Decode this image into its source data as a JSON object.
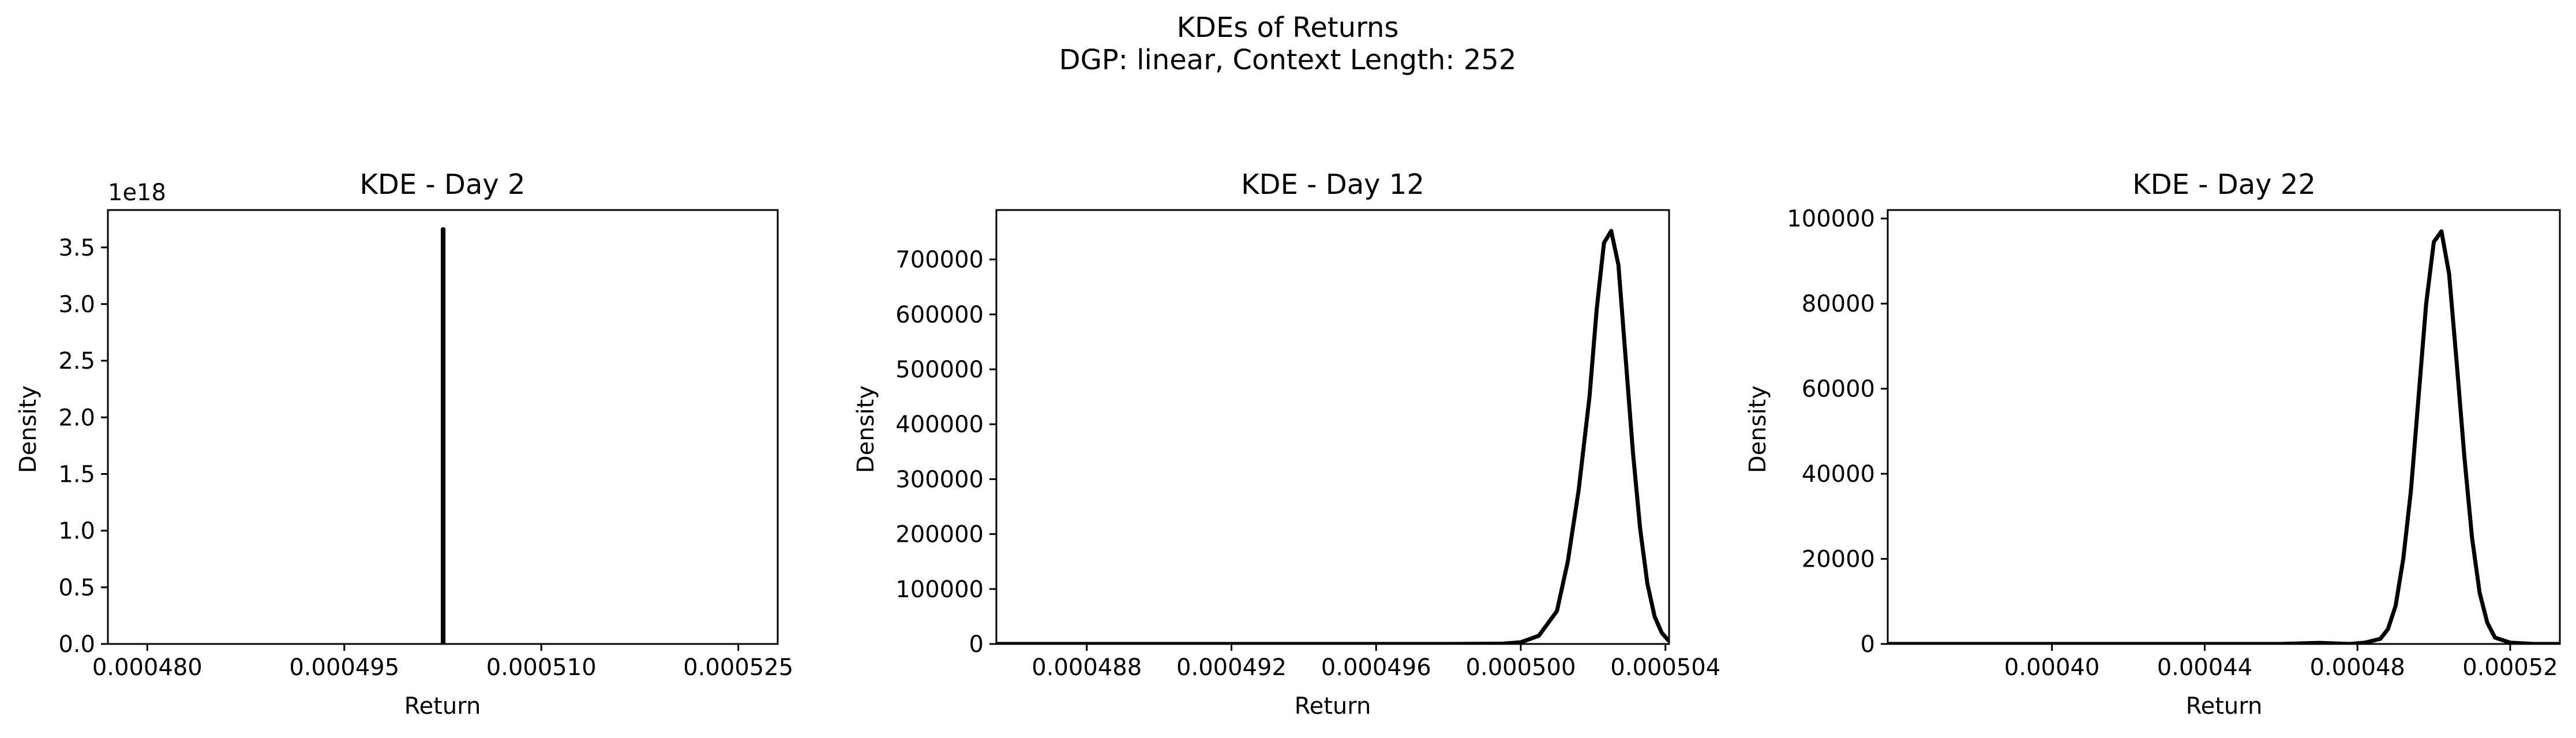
{
  "figure": {
    "title_line1": "KDEs of Returns",
    "title_line2": "DGP: linear, Context Length: 252"
  },
  "chart_data": [
    {
      "type": "line",
      "title": "KDE - Day 2",
      "xlabel": "Return",
      "ylabel": "Density",
      "y_offset_label": "1e18",
      "xlim": [
        0.000477,
        0.000528
      ],
      "ylim": [
        0,
        3.83
      ],
      "xticks": [
        0.00048,
        0.000495,
        0.00051,
        0.000525
      ],
      "xtick_labels": [
        "0.000480",
        "0.000495",
        "0.000510",
        "0.000525"
      ],
      "yticks": [
        0,
        0.5,
        1.0,
        1.5,
        2.0,
        2.5,
        3.0,
        3.5
      ],
      "ytick_labels": [
        "0.0",
        "0.5",
        "1.0",
        "1.5",
        "2.0",
        "2.5",
        "3.0",
        "3.5"
      ],
      "series": [
        {
          "x": [
            0.0005025,
            0.0005025,
            0.00050255,
            0.00050255
          ],
          "y": [
            0.0,
            3.66,
            3.66,
            0.0
          ]
        }
      ]
    },
    {
      "type": "line",
      "title": "KDE - Day 12",
      "xlabel": "Return",
      "ylabel": "Density",
      "xlim": [
        0.0004855,
        0.0005041
      ],
      "ylim": [
        0,
        790000
      ],
      "xticks": [
        0.000488,
        0.000492,
        0.000496,
        0.0005,
        0.000504
      ],
      "xtick_labels": [
        "0.000488",
        "0.000492",
        "0.000496",
        "0.000500",
        "0.000504"
      ],
      "yticks": [
        0,
        100000,
        200000,
        300000,
        400000,
        500000,
        600000,
        700000
      ],
      "ytick_labels": [
        "0",
        "100000",
        "200000",
        "300000",
        "400000",
        "500000",
        "600000",
        "700000"
      ],
      "series": [
        {
          "x": [
            0.0004855,
            0.000488,
            0.00049,
            0.000492,
            0.000494,
            0.000496,
            0.000498,
            0.0004995,
            0.0005,
            0.0005005,
            0.000501,
            0.0005013,
            0.0005016,
            0.0005019,
            0.0005021,
            0.0005023,
            0.0005025,
            0.0005027,
            0.0005029,
            0.0005031,
            0.0005033,
            0.0005035,
            0.0005037,
            0.0005039,
            0.0005041
          ],
          "y": [
            0,
            0,
            0,
            0,
            0,
            0,
            0,
            500,
            3000,
            15000,
            60000,
            150000,
            280000,
            450000,
            610000,
            730000,
            752000,
            690000,
            520000,
            350000,
            210000,
            110000,
            50000,
            20000,
            5000
          ]
        }
      ]
    },
    {
      "type": "line",
      "title": "KDE - Day 22",
      "xlabel": "Return",
      "ylabel": "Density",
      "xlim": [
        0.000357,
        0.000533
      ],
      "ylim": [
        0,
        102000
      ],
      "xticks": [
        0.0004,
        0.00044,
        0.00048,
        0.00052
      ],
      "xtick_labels": [
        "0.00040",
        "0.00044",
        "0.00048",
        "0.00052"
      ],
      "yticks": [
        0,
        20000,
        40000,
        60000,
        80000,
        100000
      ],
      "ytick_labels": [
        "0",
        "20000",
        "40000",
        "60000",
        "80000",
        "100000"
      ],
      "series": [
        {
          "x": [
            0.000357,
            0.00038,
            0.0004,
            0.00042,
            0.00044,
            0.00046,
            0.00047,
            0.000478,
            0.000482,
            0.000486,
            0.000488,
            0.00049,
            0.000492,
            0.000494,
            0.000496,
            0.000498,
            0.0005,
            0.000502,
            0.000504,
            0.000506,
            0.000508,
            0.00051,
            0.000512,
            0.000514,
            0.000516,
            0.00052,
            0.000526,
            0.000533
          ],
          "y": [
            0,
            0,
            0,
            0,
            0,
            0,
            250,
            0,
            300,
            1200,
            3500,
            9000,
            20000,
            36000,
            58000,
            80000,
            94500,
            97000,
            87000,
            66000,
            44000,
            25000,
            12000,
            5000,
            1500,
            300,
            0,
            0
          ]
        }
      ]
    }
  ]
}
